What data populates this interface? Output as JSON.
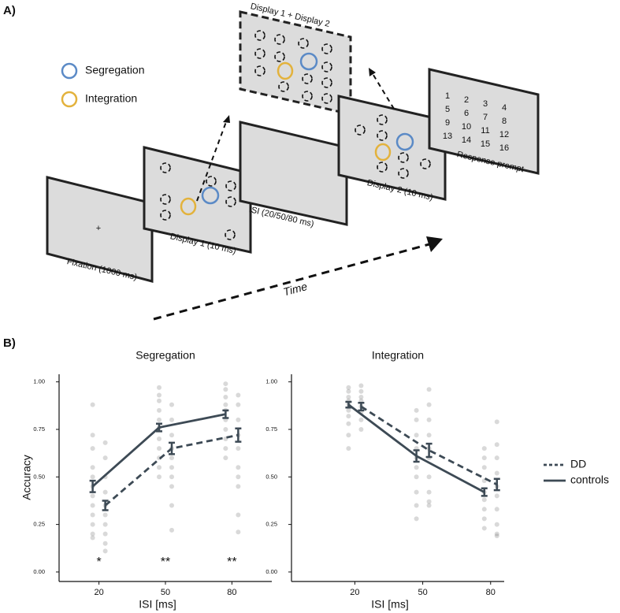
{
  "panel_a": {
    "label": "A)",
    "legend": [
      {
        "label": "Segregation",
        "color": "#5b8ac6"
      },
      {
        "label": "Integration",
        "color": "#e3b23c"
      }
    ],
    "screens": [
      "Fixation (1000 ms)",
      "Display 1 (10 ms)",
      "ISI (20/50/80 ms)",
      "Display 2 (10 ms)",
      "Response prompt"
    ],
    "combined": "Display 1 + Display 2",
    "fixation": "+",
    "time": "Time",
    "prompt_numbers": [
      "1",
      "2",
      "3",
      "4",
      "5",
      "6",
      "7",
      "8",
      "9",
      "10",
      "11",
      "12",
      "13",
      "14",
      "15",
      "16"
    ]
  },
  "panel_b_label": "B)",
  "chart_data": [
    {
      "type": "line",
      "title": "Segregation",
      "x_label": "ISI [ms]",
      "y_label": "Accuracy",
      "x": [
        20,
        50,
        80
      ],
      "xlim": [
        2,
        98
      ],
      "xticks": [
        20,
        50,
        80
      ],
      "ylim": [
        -0.05,
        1.04
      ],
      "yticks": [
        {
          "value": 0,
          "label": "0.00"
        },
        0.25,
        {
          "value": 0.5,
          "label": "0.50"
        },
        0.75,
        {
          "value": 1,
          "label": "1.00"
        }
      ],
      "series": [
        {
          "name": "DD",
          "color": "#3d4a55",
          "linestyle": "dashed",
          "values": [
            0.35,
            0.65,
            0.72
          ],
          "errors": [
            0.025,
            0.03,
            0.035
          ],
          "points": [
            [
              0.68,
              0.6,
              0.5,
              0.42,
              0.35,
              0.3,
              0.25,
              0.2,
              0.15,
              0.11
            ],
            [
              0.88,
              0.8,
              0.72,
              0.65,
              0.6,
              0.55,
              0.5,
              0.45,
              0.35,
              0.22
            ],
            [
              0.93,
              0.88,
              0.8,
              0.72,
              0.65,
              0.55,
              0.5,
              0.45,
              0.3,
              0.21
            ]
          ]
        },
        {
          "name": "controls",
          "color": "#3d4a55",
          "linestyle": "solid",
          "values": [
            0.45,
            0.76,
            0.83
          ],
          "errors": [
            0.03,
            0.02,
            0.02
          ],
          "points": [
            [
              0.88,
              0.72,
              0.65,
              0.55,
              0.5,
              0.45,
              0.4,
              0.35,
              0.3,
              0.25,
              0.2,
              0.18
            ],
            [
              0.97,
              0.93,
              0.9,
              0.85,
              0.8,
              0.76,
              0.7,
              0.65,
              0.6,
              0.55,
              0.5
            ],
            [
              0.99,
              0.96,
              0.92,
              0.88,
              0.85,
              0.8,
              0.75,
              0.7,
              0.65,
              0.6
            ]
          ]
        }
      ],
      "annotations": [
        {
          "x": 20,
          "y": 0.05,
          "label": "*"
        },
        {
          "x": 50,
          "y": 0.05,
          "label": "**"
        },
        {
          "x": 80,
          "y": 0.05,
          "label": "**"
        }
      ]
    },
    {
      "type": "line",
      "title": "Integration",
      "x_label": "ISI [ms]",
      "x": [
        20,
        50,
        80
      ],
      "xlim": [
        -8,
        86
      ],
      "xticks": [
        20,
        50,
        80
      ],
      "ylim": [
        -0.05,
        1.04
      ],
      "yticks": [
        {
          "value": 0,
          "label": "0.00"
        },
        0.25,
        {
          "value": 0.5,
          "label": "0.50"
        },
        0.75,
        {
          "value": 1,
          "label": "1.00"
        }
      ],
      "legend": "right",
      "series": [
        {
          "name": "DD",
          "color": "#3d4a55",
          "linestyle": "dashed",
          "values": [
            0.87,
            0.64,
            0.46
          ],
          "errors": [
            0.02,
            0.035,
            0.03
          ],
          "points": [
            [
              0.98,
              0.95,
              0.92,
              0.9,
              0.87,
              0.84,
              0.8,
              0.75
            ],
            [
              0.96,
              0.88,
              0.8,
              0.72,
              0.65,
              0.6,
              0.5,
              0.42,
              0.37,
              0.35
            ],
            [
              0.79,
              0.67,
              0.6,
              0.52,
              0.45,
              0.4,
              0.33,
              0.25,
              0.2,
              0.19
            ]
          ]
        },
        {
          "name": "controls",
          "color": "#3d4a55",
          "linestyle": "solid",
          "values": [
            0.88,
            0.61,
            0.42
          ],
          "errors": [
            0.015,
            0.03,
            0.02
          ],
          "points": [
            [
              0.97,
              0.95,
              0.92,
              0.9,
              0.88,
              0.85,
              0.82,
              0.78,
              0.72,
              0.65
            ],
            [
              0.85,
              0.8,
              0.72,
              0.65,
              0.6,
              0.55,
              0.5,
              0.42,
              0.35,
              0.28
            ],
            [
              0.65,
              0.6,
              0.55,
              0.48,
              0.42,
              0.38,
              0.33,
              0.28,
              0.23
            ]
          ]
        }
      ]
    }
  ]
}
